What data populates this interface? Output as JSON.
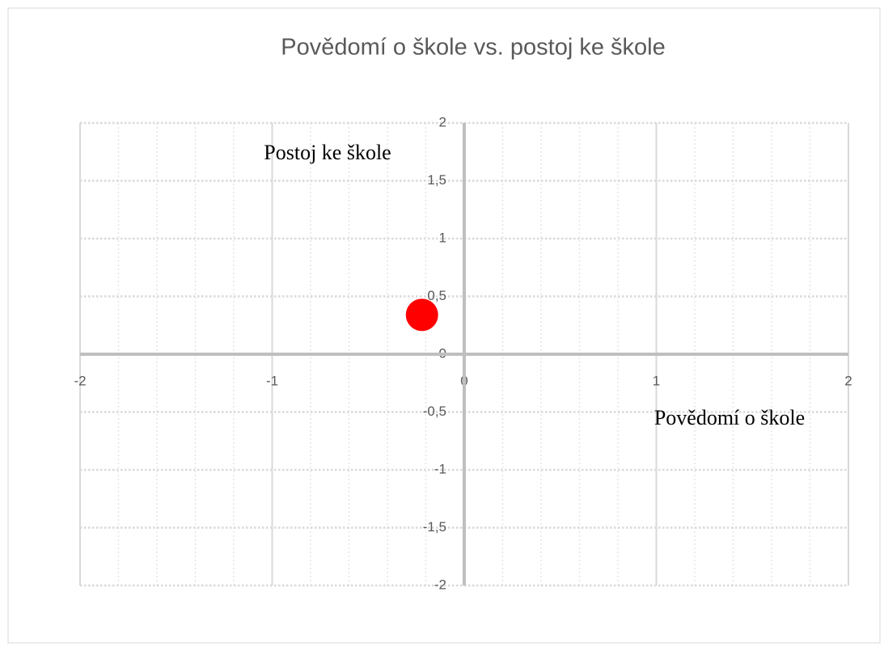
{
  "chart_data": {
    "type": "scatter",
    "title": "Povědomí o škole vs. postoj ke škole",
    "x_label": "Povědomí o škole",
    "y_label": "Postoj ke škole",
    "series": [
      {
        "color": "#ff0000",
        "x": [
          -0.22
        ],
        "values": [
          0.34
        ]
      }
    ],
    "xlim": [
      -2,
      2
    ],
    "xticks": [
      -2,
      -1,
      0,
      1,
      2
    ],
    "ylim": [
      -2,
      2
    ],
    "yticks": [
      {
        "value": -2,
        "label": "-2"
      },
      {
        "value": -1.5,
        "label": "-1,5"
      },
      {
        "value": -1,
        "label": "-1"
      },
      {
        "value": -0.5,
        "label": "-0,5"
      },
      0,
      {
        "value": 0.5,
        "label": "0,5"
      },
      1,
      {
        "value": 1.5,
        "label": "1,5"
      },
      2
    ],
    "grid": true
  }
}
